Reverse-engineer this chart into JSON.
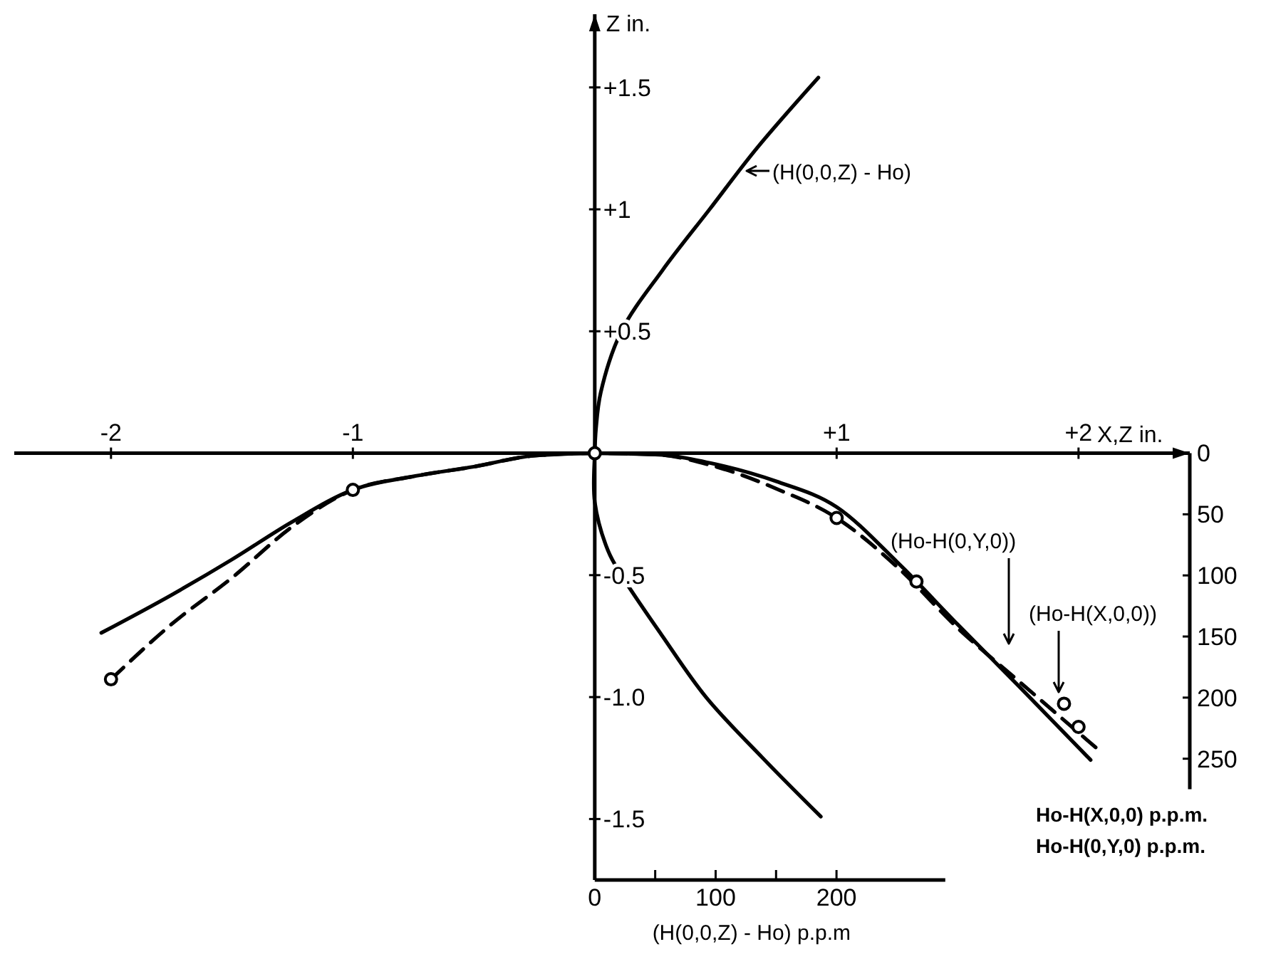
{
  "chart_data": {
    "type": "line",
    "xlabel": "X,Z in.",
    "ylabel": "Z in.",
    "y2label": "Ho-H(X,0,0) p.p.m.\nHo-H(0,Y,0) p.p.m.",
    "x2label": "(H(0,0,Z) - Ho) p.p.m",
    "xlim": [
      -2.4,
      2.46
    ],
    "xticks": [
      -2,
      -1,
      {
        "value": 1,
        "label": "+1"
      },
      {
        "value": 2,
        "label": "+2"
      }
    ],
    "ylim": [
      -1.75,
      1.8
    ],
    "yticks": [
      {
        "value": 1.5,
        "label": "+1.5"
      },
      {
        "value": 1,
        "label": "+1"
      },
      {
        "value": 0.5,
        "label": "+0.5"
      },
      -0.5,
      {
        "value": -1,
        "label": "-1.0"
      },
      -1.5
    ],
    "y2lim": [
      275,
      0
    ],
    "y2ticks": [
      0,
      50,
      100,
      150,
      200,
      250
    ],
    "x2lim": [
      0,
      290
    ],
    "x2ticks": [
      0,
      {
        "value": 50,
        "label": null
      },
      100,
      {
        "value": 150,
        "label": null
      },
      200
    ],
    "grid": false,
    "annotations": [
      "(H(0,0,Z) - Ho)",
      "(Ho-H(0,Y,0))",
      "(Ho-H(X,0,0))"
    ],
    "series": [
      {
        "axis": "x2",
        "color": "#000000",
        "line_style": "solid",
        "x": [
          187,
          139,
          92,
          56,
          22,
          11,
          0,
          0,
          1,
          5,
          22,
          56,
          95,
          134,
          185
        ],
        "values": [
          -1.49,
          -1.25,
          -1.0,
          -0.75,
          -0.5,
          -0.4,
          -0.2,
          0,
          0.1,
          0.25,
          0.5,
          0.75,
          1.0,
          1.25,
          1.54
        ]
      },
      {
        "axis": "y2",
        "color": "#000000",
        "line_style": "solid",
        "x": [
          -2.04,
          -1.75,
          -1.5,
          -1.25,
          -1,
          -0.75,
          -0.5,
          -0.25,
          0,
          0.25,
          0.5,
          0.75,
          1,
          1.25,
          1.5,
          1.75,
          2.05
        ],
        "values": [
          147,
          116,
          87,
          56,
          30,
          19,
          11,
          2,
          0,
          1,
          9,
          23,
          44,
          89,
          140,
          190,
          251
        ]
      },
      {
        "axis": "y2",
        "color": "#000000",
        "line_style": "dashed",
        "x": [
          -2,
          -1.75,
          -1.5,
          -1.25,
          -1,
          -0.75,
          -0.5,
          -0.25,
          0,
          0.25,
          0.5,
          0.75,
          1,
          1.25,
          1.5,
          1.75,
          2.09
        ],
        "values": [
          185,
          140,
          102,
          60,
          30,
          19,
          11,
          2,
          0,
          1,
          11,
          29,
          53,
          93,
          143,
          186,
          244
        ]
      },
      {
        "type": "scatter",
        "axis": "y2",
        "color": "#000000",
        "marker": "circle",
        "x": [
          -2,
          -1,
          0,
          1,
          1.33,
          1.94,
          2.0
        ],
        "values": [
          185,
          30,
          0,
          53,
          105,
          205,
          224
        ]
      }
    ]
  }
}
